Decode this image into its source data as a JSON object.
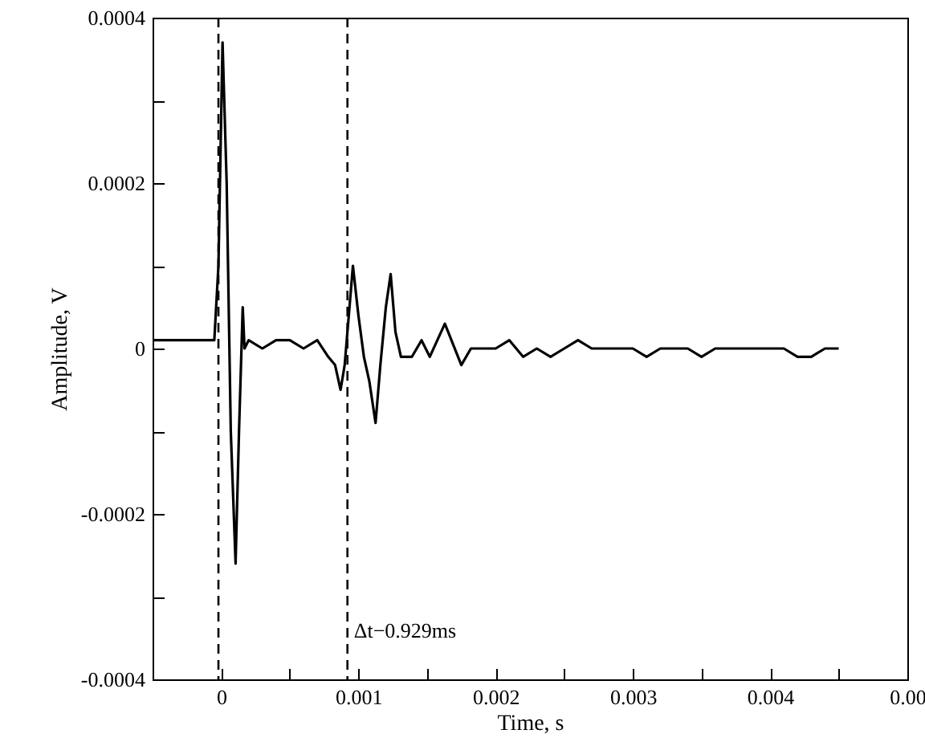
{
  "chart_data": {
    "type": "line",
    "xlabel": "Time, s",
    "ylabel": "Amplitude, V",
    "xlim": [
      -0.0005,
      0.005
    ],
    "xticks": [
      0,
      {
        "value": 0.0005,
        "label": null
      },
      0.001,
      {
        "value": 0.0015,
        "label": null
      },
      0.002,
      {
        "value": 0.0025,
        "label": null
      },
      0.003,
      {
        "value": 0.0035,
        "label": null
      },
      0.004,
      {
        "value": 0.0045,
        "label": null
      },
      {
        "value": 0.005,
        "label": "0.00"
      }
    ],
    "ylim": [
      -0.0004,
      0.0004
    ],
    "yticks": [
      -0.0004,
      {
        "value": -0.0003,
        "label": null
      },
      -0.0002,
      {
        "value": -0.0001,
        "label": null
      },
      0,
      {
        "value": 0.0001,
        "label": null
      },
      0.0002,
      {
        "value": 0.0003,
        "label": null
      },
      0.0004
    ],
    "grid": false,
    "marker": "none",
    "line_style": "solid",
    "ref_lines": [
      {
        "axis": "x",
        "value": -2e-05,
        "line_style": "dashed",
        "color": "#000000"
      },
      {
        "axis": "x",
        "value": 0.00092,
        "label": "Δt−0.929ms",
        "line_style": "dashed",
        "color": "#000000"
      }
    ],
    "series": [
      {
        "color": "#000000",
        "x": [
          -0.0005,
          -0.0004,
          -0.0003,
          -0.0002,
          -0.0001,
          -5e-05,
          -2e-05,
          1e-05,
          4e-05,
          7e-05,
          0.000105,
          0.00013,
          0.000157,
          0.00017,
          0.0002,
          0.0003,
          0.0004,
          0.0005,
          0.0006,
          0.0007,
          0.00078,
          0.00083,
          0.00087,
          0.0009,
          0.00096,
          0.001,
          0.00104,
          0.00108,
          0.001125,
          0.00116,
          0.0012,
          0.001235,
          0.00127,
          0.00131,
          0.00139,
          0.00146,
          0.00152,
          0.00163,
          0.00175,
          0.00182,
          0.0019,
          0.002,
          0.0021,
          0.0022,
          0.0023,
          0.0024,
          0.0025,
          0.0026,
          0.0027,
          0.0028,
          0.0029,
          0.003,
          0.0031,
          0.0032,
          0.0033,
          0.0034,
          0.0035,
          0.0036,
          0.0037,
          0.0038,
          0.0039,
          0.004,
          0.0041,
          0.0042,
          0.0043,
          0.0044,
          0.0045
        ],
        "values": [
          1e-05,
          1e-05,
          1e-05,
          1e-05,
          1e-05,
          1e-05,
          0.0001,
          0.00037,
          0.0002,
          -0.0001,
          -0.00026,
          -0.0001,
          5e-05,
          0,
          1e-05,
          0,
          1e-05,
          1e-05,
          0,
          1e-05,
          -1e-05,
          -2e-05,
          -5e-05,
          -2e-05,
          0.0001,
          4e-05,
          -1e-05,
          -4e-05,
          -9e-05,
          -2e-05,
          5e-05,
          9e-05,
          2e-05,
          -1e-05,
          -1e-05,
          1e-05,
          -1e-05,
          3e-05,
          -2e-05,
          0,
          0,
          0,
          1e-05,
          -1e-05,
          0,
          -1e-05,
          0,
          1e-05,
          0,
          0,
          0,
          0,
          -1e-05,
          0,
          0,
          0,
          -1e-05,
          0,
          0,
          0,
          0,
          0,
          0,
          -1e-05,
          -1e-05,
          0,
          0
        ]
      }
    ]
  }
}
